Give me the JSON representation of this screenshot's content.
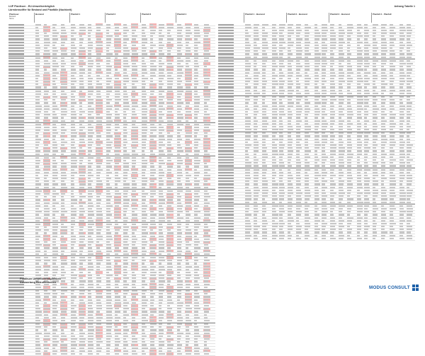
{
  "header": {
    "title_line1": "LUP Planfeuer - EU-Umweltverträglich",
    "title_line2": "Lärmkennziffer für Bestand und Planfälle (Nachtzeit)",
    "right_label": "Anhang Tabelle 1"
  },
  "left_table": {
    "columns": [
      {
        "title": "Planfeuer",
        "sub1": "Bestand",
        "sub2": "Name"
      },
      {
        "title": "Bestand",
        "sub1": "",
        "sub2": ""
      },
      {
        "title": "Planfall 1",
        "sub1": "",
        "sub2": ""
      },
      {
        "title": "Planfall 2",
        "sub1": "",
        "sub2": ""
      },
      {
        "title": "Planfall 3",
        "sub1": "",
        "sub2": ""
      },
      {
        "title": "Planfall 4",
        "sub1": "",
        "sub2": ""
      }
    ]
  },
  "right_table": {
    "columns": [
      {
        "title": "Planfall 1 - Bestand",
        "sub1": "",
        "sub2": ""
      },
      {
        "title": "Planfall 2 - Bestand",
        "sub1": "",
        "sub2": ""
      },
      {
        "title": "Planfall 3 - Bestand",
        "sub1": "",
        "sub2": ""
      },
      {
        "title": "Planfall 4 - Planfall",
        "sub1": "",
        "sub2": ""
      }
    ]
  },
  "footer": {
    "line1": "Planfeuer Umweltverträglichkeit",
    "line2": "Auswertung Betroffenheiten",
    "center": "",
    "logo_text": "MODUS CONSULT"
  },
  "colors": {
    "highlight": "#f4b6b6",
    "brand": "#1b5fa8"
  }
}
